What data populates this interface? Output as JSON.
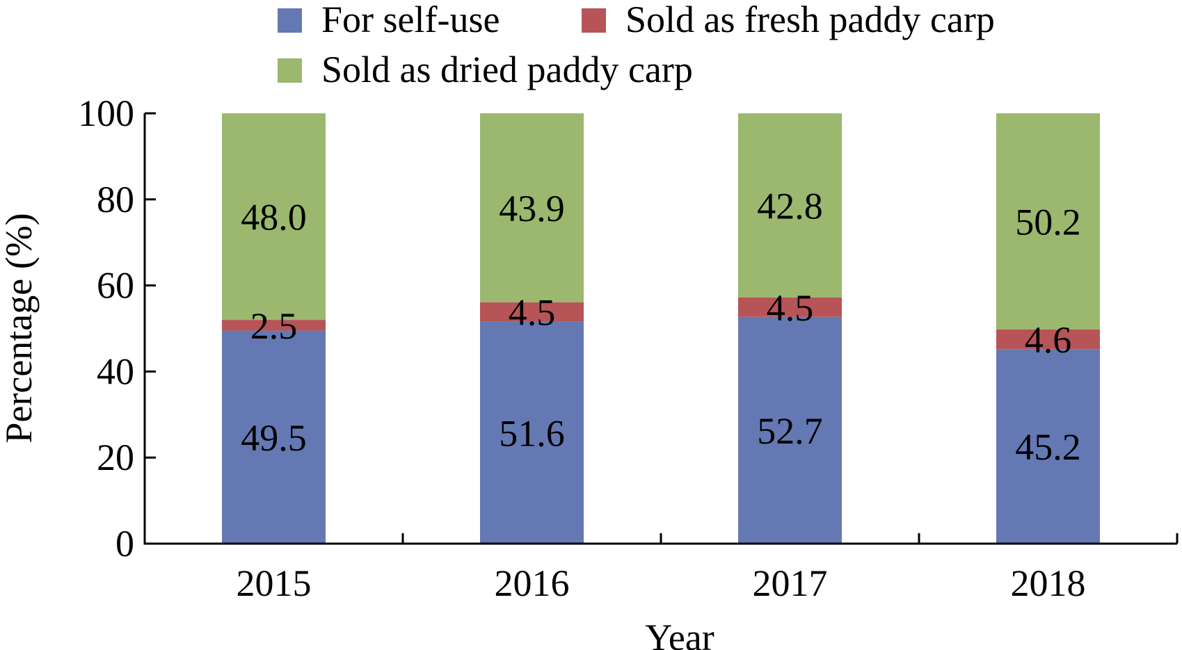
{
  "chart_data": {
    "type": "bar",
    "stacked": true,
    "categories": [
      "2015",
      "2016",
      "2017",
      "2018"
    ],
    "series": [
      {
        "name": "For self-use",
        "color": "#6479b3",
        "values": [
          49.5,
          51.6,
          52.7,
          45.2
        ],
        "labels": [
          "49.5",
          "51.6",
          "52.7",
          "45.2"
        ]
      },
      {
        "name": "Sold as fresh paddy carp",
        "color": "#b65457",
        "values": [
          2.5,
          4.5,
          4.5,
          4.6
        ],
        "labels": [
          "2.5",
          "4.5",
          "4.5",
          "4.6"
        ]
      },
      {
        "name": "Sold as dried paddy carp",
        "color": "#9bb86e",
        "values": [
          48.0,
          43.9,
          42.8,
          50.2
        ],
        "labels": [
          "48.0",
          "43.9",
          "42.8",
          "50.2"
        ]
      }
    ],
    "xlabel": "Year",
    "ylabel": "Percentage (%)",
    "ylim": [
      0,
      100
    ],
    "yticks": [
      "0",
      "20",
      "40",
      "60",
      "80",
      "100"
    ],
    "grid": false,
    "legend": "top"
  }
}
